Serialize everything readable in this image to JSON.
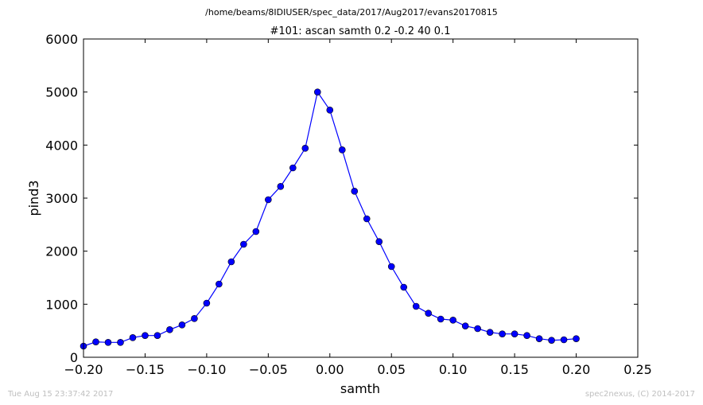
{
  "header": {
    "file_path": "/home/beams/8IDIUSER/spec_data/2017/Aug2017/evans20170815"
  },
  "footer": {
    "timestamp": "Tue Aug 15 23:37:42 2017",
    "credit": "spec2nexus, (C) 2014-2017"
  },
  "colors": {
    "line": "#0000ff",
    "marker_fill": "#0000ff",
    "marker_edge": "#000000",
    "axes": "#000000",
    "footer_text": "#bfbfbf"
  },
  "chart_data": {
    "type": "line",
    "title": "#101: ascan  samth 0.2 -0.2  40 0.1",
    "xlabel": "samth",
    "ylabel": "pind3",
    "xlim": [
      -0.2,
      0.25
    ],
    "ylim": [
      0,
      6000
    ],
    "x_ticks": [
      -0.2,
      -0.15,
      -0.1,
      -0.05,
      0.0,
      0.05,
      0.1,
      0.15,
      0.2,
      0.25
    ],
    "x_tick_labels": [
      "−0.20",
      "−0.15",
      "−0.10",
      "−0.05",
      "0.00",
      "0.05",
      "0.10",
      "0.15",
      "0.20",
      "0.25"
    ],
    "y_ticks": [
      0,
      1000,
      2000,
      3000,
      4000,
      5000,
      6000
    ],
    "y_tick_labels": [
      "0",
      "1000",
      "2000",
      "3000",
      "4000",
      "5000",
      "6000"
    ],
    "grid": false,
    "legend": "none",
    "series": [
      {
        "marker": "circle",
        "x": [
          -0.2,
          -0.19,
          -0.18,
          -0.17,
          -0.16,
          -0.15,
          -0.14,
          -0.13,
          -0.12,
          -0.11,
          -0.1,
          -0.09,
          -0.08,
          -0.07,
          -0.06,
          -0.05,
          -0.04,
          -0.03,
          -0.02,
          -0.01,
          0.0,
          0.01,
          0.02,
          0.03,
          0.04,
          0.05,
          0.06,
          0.07,
          0.08,
          0.09,
          0.1,
          0.11,
          0.12,
          0.13,
          0.14,
          0.15,
          0.16,
          0.17,
          0.18,
          0.19,
          0.2
        ],
        "y": [
          210,
          290,
          280,
          280,
          370,
          410,
          410,
          520,
          610,
          730,
          1020,
          1380,
          1800,
          2130,
          2370,
          2970,
          3220,
          3570,
          3940,
          5000,
          4660,
          3910,
          3130,
          2610,
          2180,
          1710,
          1320,
          960,
          830,
          720,
          700,
          590,
          540,
          470,
          440,
          440,
          410,
          350,
          320,
          330,
          350
        ]
      }
    ]
  }
}
